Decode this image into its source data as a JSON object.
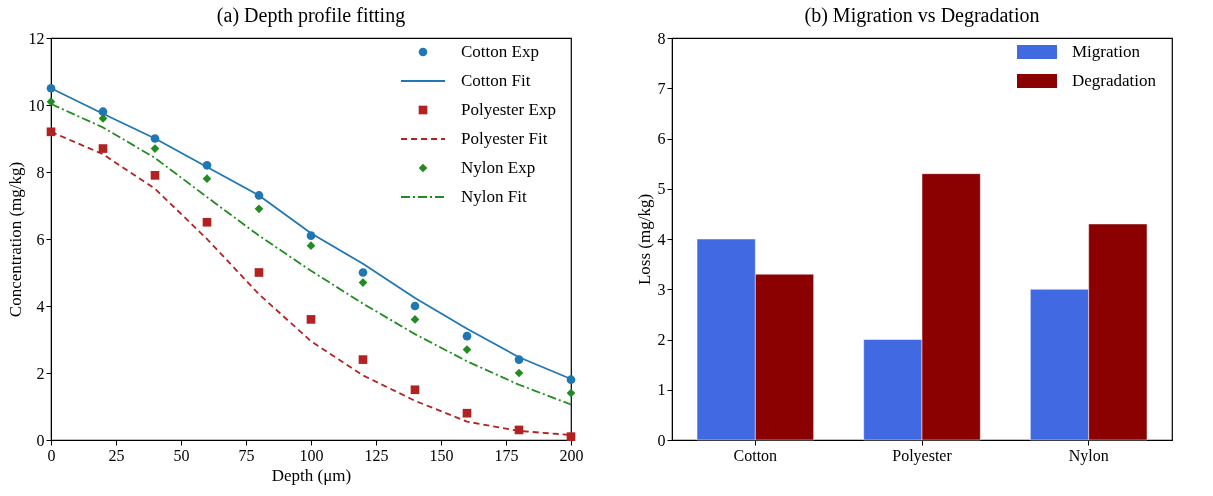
{
  "chart_data": [
    {
      "type": "line",
      "title": "(a) Depth profile fitting",
      "xlabel": "Depth (μm)",
      "ylabel": "Concentration (mg/kg)",
      "x": [
        0,
        20,
        40,
        60,
        80,
        100,
        120,
        140,
        160,
        180,
        200
      ],
      "xlim": [
        0,
        200
      ],
      "xticks": [
        0,
        25,
        50,
        75,
        100,
        125,
        150,
        175,
        200
      ],
      "ylim": [
        0,
        12
      ],
      "yticks": [
        0,
        2,
        4,
        6,
        8,
        10,
        12
      ],
      "legend": "top right",
      "series": [
        {
          "name": "Cotton Exp",
          "type": "scatter",
          "marker": "circle",
          "color": "#1f77b4",
          "values": [
            10.5,
            9.8,
            9.0,
            8.2,
            7.3,
            6.1,
            5.0,
            4.0,
            3.1,
            2.4,
            1.8
          ]
        },
        {
          "name": "Cotton Fit",
          "type": "line",
          "line_style": "solid",
          "color": "#1f77b4",
          "values": [
            10.5,
            9.74,
            9.0,
            8.15,
            7.3,
            6.17,
            5.26,
            4.24,
            3.32,
            2.47,
            1.82
          ]
        },
        {
          "name": "Polyester Exp",
          "type": "scatter",
          "marker": "square",
          "color": "#b22222",
          "values": [
            9.2,
            8.7,
            7.9,
            6.5,
            5.0,
            3.6,
            2.4,
            1.5,
            0.8,
            0.3,
            0.1
          ]
        },
        {
          "name": "Polyester Fit",
          "type": "line",
          "line_style": "dashed",
          "color": "#b22222",
          "values": [
            9.2,
            8.53,
            7.5,
            6.0,
            4.35,
            2.95,
            1.93,
            1.17,
            0.55,
            0.27,
            0.15
          ]
        },
        {
          "name": "Nylon Exp",
          "type": "scatter",
          "marker": "diamond",
          "color": "#228b22",
          "values": [
            10.1,
            9.6,
            8.7,
            7.8,
            6.9,
            5.8,
            4.7,
            3.6,
            2.7,
            2.0,
            1.4
          ]
        },
        {
          "name": "Nylon Fit",
          "type": "line",
          "line_style": "dashdot",
          "color": "#228b22",
          "values": [
            10.03,
            9.33,
            8.42,
            7.25,
            6.1,
            5.05,
            4.07,
            3.16,
            2.35,
            1.65,
            1.06
          ]
        }
      ]
    },
    {
      "type": "bar",
      "title": "(b) Migration vs Degradation",
      "ylabel": "Loss (mg/kg)",
      "categories": [
        "Cotton",
        "Polyester",
        "Nylon"
      ],
      "ylim": [
        0,
        8
      ],
      "yticks": [
        0,
        1,
        2,
        3,
        4,
        5,
        6,
        7,
        8
      ],
      "legend": "top right",
      "series": [
        {
          "name": "Migration",
          "color": "#4169e1",
          "values": [
            4,
            2,
            3
          ]
        },
        {
          "name": "Degradation",
          "color": "#8b0000",
          "values": [
            3.3,
            5.3,
            4.3
          ]
        }
      ]
    }
  ]
}
